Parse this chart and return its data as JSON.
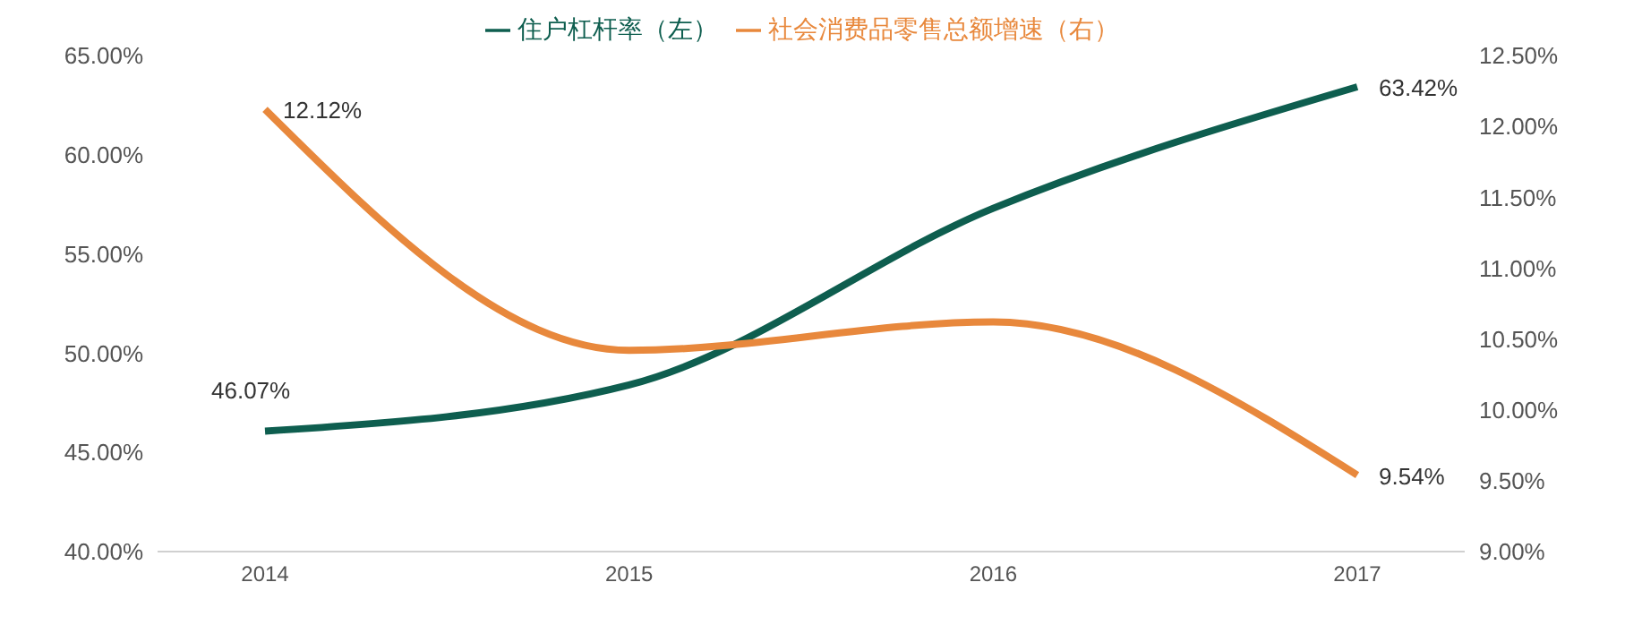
{
  "chart_data": {
    "type": "line",
    "categories": [
      "2014",
      "2015",
      "2016",
      "2017"
    ],
    "series": [
      {
        "name": "住户杠杆率（左）",
        "color": "#0e5e4f",
        "values": [
          46.07,
          48.4,
          57.3,
          63.42
        ],
        "value_labels": [
          "46.07%",
          null,
          null,
          "63.42%"
        ]
      },
      {
        "name": "社会消费品零售总额增速（右）",
        "color": "#e8883c",
        "axis": "y2",
        "values": [
          12.12,
          10.42,
          10.62,
          9.54
        ],
        "value_labels": [
          "12.12%",
          null,
          null,
          "9.54%"
        ]
      }
    ],
    "ylim": [
      40,
      65
    ],
    "yticks": [
      {
        "value": 40,
        "label": "40.00%"
      },
      {
        "value": 45,
        "label": "45.00%"
      },
      {
        "value": 50,
        "label": "50.00%"
      },
      {
        "value": 55,
        "label": "55.00%"
      },
      {
        "value": 60,
        "label": "60.00%"
      },
      {
        "value": 65,
        "label": "65.00%"
      }
    ],
    "y2lim": [
      9,
      12.5
    ],
    "y2ticks": [
      {
        "value": 9,
        "label": "9.00%"
      },
      {
        "value": 9.5,
        "label": "9.50%"
      },
      {
        "value": 10,
        "label": "10.00%"
      },
      {
        "value": 10.5,
        "label": "10.50%"
      },
      {
        "value": 11,
        "label": "11.00%"
      },
      {
        "value": 11.5,
        "label": "11.50%"
      },
      {
        "value": 12,
        "label": "12.00%"
      },
      {
        "value": 12.5,
        "label": "12.50%"
      }
    ],
    "legend": "top",
    "marker": "none",
    "line_style": "solid"
  }
}
